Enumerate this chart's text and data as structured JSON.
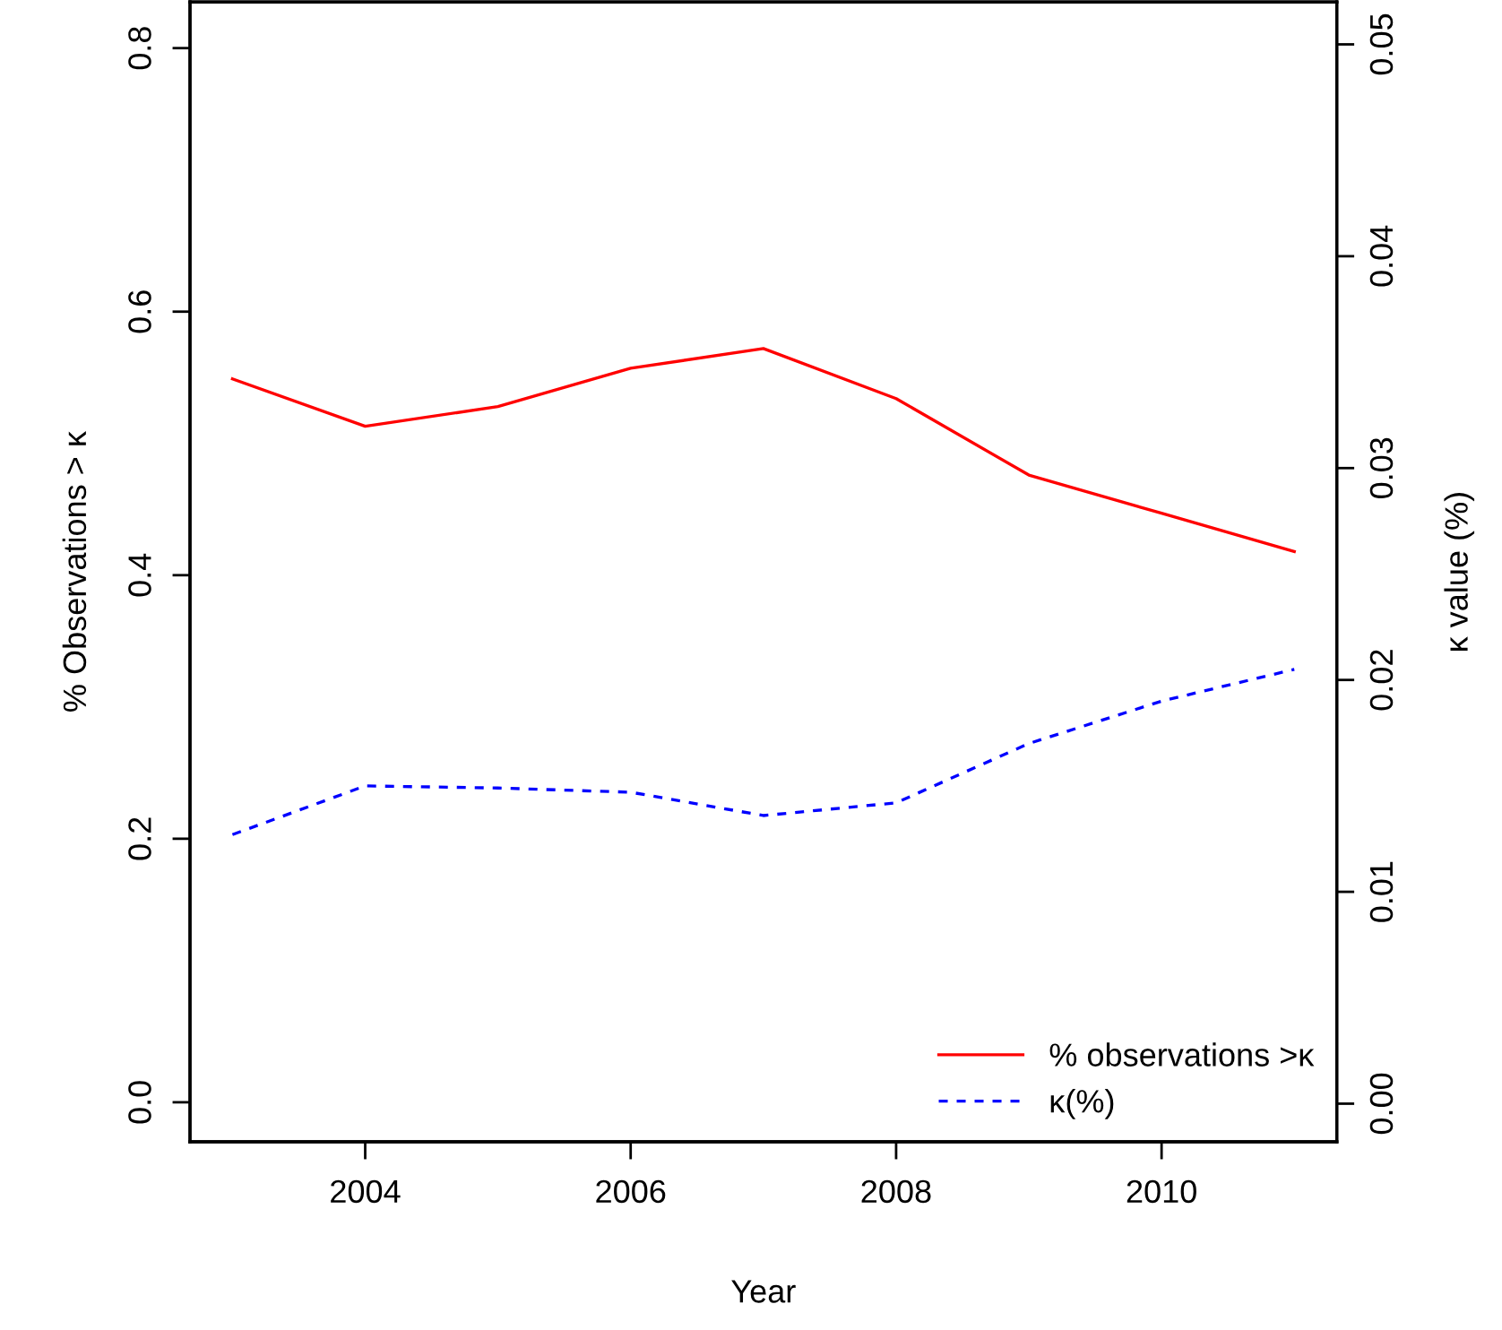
{
  "chart_data": {
    "type": "line",
    "xlabel": "Year",
    "ylabel": "% Observations > κ",
    "y2label": "κ value (%)",
    "x": [
      2003,
      2004,
      2005,
      2006,
      2007,
      2008,
      2009,
      2010,
      2011
    ],
    "series": [
      {
        "name": "% observations >κ",
        "color": "#ff0000",
        "line_style": "solid",
        "values": [
          0.549,
          0.513,
          0.528,
          0.557,
          0.572,
          0.534,
          0.476,
          0.447,
          0.418
        ]
      },
      {
        "name": "κ(%)",
        "color": "#0000ff",
        "line_style": "dashed",
        "axis": "y2",
        "values": [
          0.0127,
          0.015,
          0.0149,
          0.0147,
          0.0136,
          0.0142,
          0.017,
          0.019,
          0.0205
        ]
      }
    ],
    "xlim": [
      2002.68,
      2011.32
    ],
    "xticks": [
      2004,
      2006,
      2008,
      2010
    ],
    "ylim": [
      -0.03,
      0.835
    ],
    "yticks": [
      {
        "value": 0,
        "label": "0.0"
      },
      0.2,
      0.4,
      0.6,
      0.8
    ],
    "y2lim": [
      -0.0018,
      0.052
    ],
    "y2ticks": [
      {
        "value": 0,
        "label": "0.00"
      },
      0.01,
      0.02,
      0.03,
      0.04,
      0.05
    ],
    "legend": "bottom right",
    "grid": false,
    "marker": "none"
  }
}
